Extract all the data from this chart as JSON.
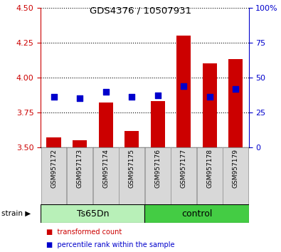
{
  "title": "GDS4376 / 10507931",
  "samples": [
    "GSM957172",
    "GSM957173",
    "GSM957174",
    "GSM957175",
    "GSM957176",
    "GSM957177",
    "GSM957178",
    "GSM957179"
  ],
  "red_values": [
    3.57,
    3.55,
    3.82,
    3.62,
    3.83,
    4.3,
    4.1,
    4.13
  ],
  "blue_values": [
    3.86,
    3.85,
    3.9,
    3.86,
    3.87,
    3.94,
    3.86,
    3.92
  ],
  "red_base": 3.5,
  "ylim_left": [
    3.5,
    4.5
  ],
  "ylim_right": [
    0,
    100
  ],
  "yticks_left": [
    3.5,
    3.75,
    4.0,
    4.25,
    4.5
  ],
  "yticks_right": [
    0,
    25,
    50,
    75,
    100
  ],
  "ytick_labels_right": [
    "0",
    "25",
    "50",
    "75",
    "100%"
  ],
  "strain_groups": [
    {
      "label": "Ts65Dn",
      "start": 0,
      "end": 4,
      "color": "#b8f0b8"
    },
    {
      "label": "control",
      "start": 4,
      "end": 8,
      "color": "#44cc44"
    }
  ],
  "strain_label": "strain",
  "bar_color": "#cc0000",
  "dot_color": "#0000cc",
  "bg_color": "#d8d8d8",
  "left_axis_color": "#cc0000",
  "right_axis_color": "#0000cc",
  "legend_red": "transformed count",
  "legend_blue": "percentile rank within the sample",
  "bar_width": 0.55,
  "dot_size": 28
}
